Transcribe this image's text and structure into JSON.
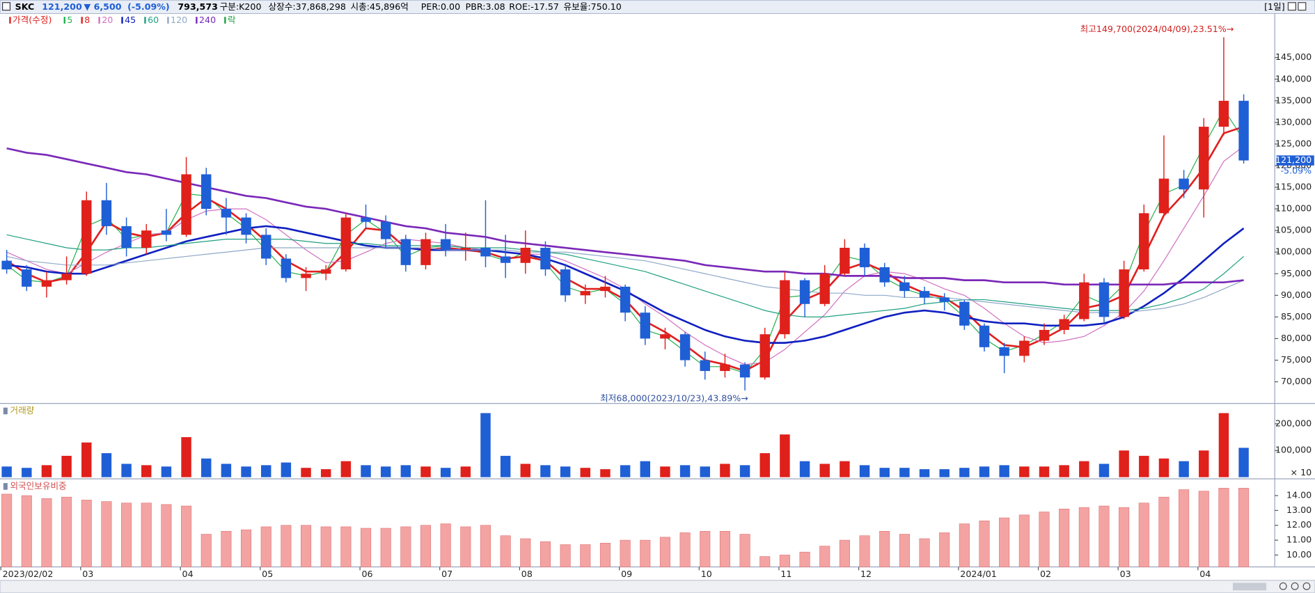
{
  "header": {
    "symbol": "SKC",
    "price": "121,200",
    "change": "▼ 6,500",
    "change_pct": "(-5.09%)",
    "volume": "793,573",
    "items": [
      "구분:K200",
      "상장수:37,868,298",
      "시총:45,896억",
      "PER:0.00",
      "PBR:3.08",
      "ROE:-17.57",
      "유보율:750.10"
    ],
    "period": "[1일]"
  },
  "chart_data": [
    {
      "type": "candlestick",
      "price_legend": "가격(수정)",
      "lock_legend": "락",
      "up_color": "#e0201b",
      "down_color": "#1f5fd6",
      "categories": [
        "2023/02/02",
        null,
        null,
        null,
        "03",
        null,
        null,
        null,
        null,
        "04",
        null,
        null,
        null,
        "05",
        null,
        null,
        null,
        null,
        "06",
        null,
        null,
        null,
        "07",
        null,
        null,
        null,
        "08",
        null,
        null,
        null,
        null,
        "09",
        null,
        null,
        null,
        "10",
        null,
        null,
        null,
        "11",
        null,
        null,
        null,
        "12",
        null,
        null,
        null,
        null,
        "2024/01",
        null,
        null,
        null,
        "02",
        null,
        null,
        null,
        "03",
        null,
        null,
        null,
        "04",
        null,
        null
      ],
      "open": [
        98000,
        96000,
        92000,
        93500,
        95000,
        112000,
        106000,
        101000,
        105000,
        104000,
        118000,
        110000,
        108000,
        104000,
        98500,
        94000,
        95000,
        96000,
        108000,
        107000,
        103000,
        97000,
        103000,
        100500,
        101000,
        99000,
        97500,
        101000,
        96000,
        90000,
        91000,
        92000,
        86000,
        80000,
        81000,
        75000,
        72500,
        74000,
        71000,
        81000,
        93500,
        88000,
        95000,
        101000,
        96500,
        93000,
        91000,
        89500,
        88500,
        83000,
        78000,
        76000,
        79500,
        82000,
        84500,
        93000,
        85000,
        96000,
        109000,
        117000,
        114500,
        129000,
        135000
      ],
      "high": [
        100500,
        97000,
        95500,
        99000,
        114000,
        116000,
        108000,
        106500,
        110000,
        122000,
        119500,
        112500,
        109000,
        105500,
        99500,
        96500,
        97000,
        109000,
        111000,
        108500,
        104000,
        104500,
        106500,
        104500,
        112000,
        104000,
        105000,
        102500,
        97000,
        92500,
        94500,
        92500,
        87500,
        82500,
        81500,
        77000,
        76500,
        74500,
        82500,
        95500,
        94000,
        97000,
        103000,
        102000,
        97500,
        94500,
        92000,
        90500,
        89000,
        83500,
        79000,
        80500,
        83500,
        85500,
        95000,
        94000,
        98000,
        111000,
        127000,
        119000,
        131000,
        149700,
        136500
      ],
      "low": [
        95000,
        91000,
        89500,
        92500,
        94500,
        104000,
        99000,
        99500,
        102500,
        103500,
        108500,
        104000,
        102000,
        97000,
        93000,
        91000,
        93500,
        95500,
        105500,
        101000,
        95500,
        96000,
        99000,
        98000,
        96500,
        94000,
        95000,
        94500,
        88500,
        88000,
        89500,
        84000,
        78500,
        77500,
        73500,
        70500,
        71000,
        68000,
        70500,
        80000,
        85000,
        87500,
        94500,
        94500,
        92000,
        89500,
        88000,
        86500,
        82000,
        77000,
        72000,
        74500,
        78500,
        81000,
        84000,
        83500,
        84500,
        95500,
        108500,
        112500,
        108000,
        127000,
        120500
      ],
      "close": [
        96000,
        92000,
        93500,
        95000,
        112000,
        106000,
        101000,
        105000,
        104000,
        118000,
        110000,
        108000,
        104000,
        98500,
        94000,
        95000,
        96000,
        108000,
        107000,
        103000,
        97000,
        103000,
        100500,
        101000,
        99000,
        97500,
        101000,
        96000,
        90000,
        91000,
        92000,
        86000,
        80000,
        81000,
        75000,
        72500,
        74000,
        71000,
        81000,
        93500,
        88000,
        95000,
        101000,
        96500,
        93000,
        91000,
        89500,
        88500,
        83000,
        78000,
        76000,
        79500,
        82000,
        84500,
        93000,
        85000,
        96000,
        109000,
        117000,
        114500,
        129000,
        135000,
        121200
      ],
      "series": [
        {
          "name": "5",
          "color": "#22b14c",
          "line_width": 1,
          "values": [
            97000,
            93500,
            93000,
            94500,
            106000,
            108000,
            103000,
            104000,
            104500,
            113500,
            113000,
            109000,
            105500,
            100500,
            95500,
            94500,
            95500,
            104000,
            107500,
            104500,
            99000,
            101000,
            101500,
            101000,
            99500,
            98000,
            100000,
            97500,
            92000,
            90500,
            91500,
            88000,
            82000,
            80500,
            77000,
            73500,
            73500,
            72000,
            77500,
            89500,
            90000,
            92500,
            99000,
            98000,
            94000,
            91500,
            90000,
            89000,
            85000,
            80000,
            77000,
            78500,
            81000,
            84000,
            90000,
            88000,
            92500,
            104500,
            113500,
            115500,
            124500,
            133000,
            126000
          ]
        },
        {
          "name": "8",
          "color": "#e02020",
          "line_width": 2.2,
          "values": [
            98000,
            95000,
            93000,
            94000,
            100000,
            107000,
            104500,
            103500,
            104500,
            109000,
            112500,
            110000,
            106500,
            102500,
            98000,
            95500,
            95500,
            100000,
            105500,
            105000,
            101000,
            100500,
            101000,
            100500,
            100000,
            98500,
            99000,
            98000,
            94000,
            91500,
            91500,
            89000,
            84000,
            81500,
            78500,
            75000,
            74000,
            72500,
            75000,
            84000,
            89000,
            91000,
            96000,
            97500,
            95500,
            92500,
            90500,
            89500,
            86500,
            82000,
            78500,
            78000,
            80000,
            82500,
            87000,
            88000,
            90000,
            99000,
            108500,
            113500,
            119500,
            127500,
            129000
          ]
        },
        {
          "name": "20",
          "color": "#d070c0",
          "line_width": 1,
          "values": [
            100000,
            98000,
            96000,
            95000,
            97500,
            100000,
            102000,
            104000,
            104500,
            107500,
            109500,
            110000,
            110000,
            107500,
            104000,
            100500,
            97500,
            98000,
            100000,
            102000,
            103000,
            102500,
            102000,
            101000,
            100500,
            100000,
            99500,
            99500,
            98000,
            96000,
            94000,
            91500,
            88000,
            85000,
            81500,
            78500,
            76000,
            74000,
            74500,
            77500,
            81500,
            85500,
            91000,
            94500,
            95500,
            95000,
            93500,
            91500,
            90000,
            87000,
            83500,
            80500,
            79000,
            79500,
            80500,
            83000,
            86000,
            91000,
            98000,
            105500,
            113000,
            121000,
            124500
          ]
        },
        {
          "name": "45",
          "color": "#1020c0",
          "line_width": 2.2,
          "values": [
            97000,
            96500,
            95500,
            95000,
            95000,
            96500,
            98000,
            99500,
            101000,
            102500,
            103500,
            104500,
            105500,
            106000,
            105500,
            104500,
            103500,
            102500,
            101500,
            101000,
            101000,
            100500,
            100500,
            100500,
            100500,
            100000,
            99500,
            98500,
            97000,
            95000,
            93000,
            91000,
            88500,
            86000,
            84000,
            82000,
            80500,
            79500,
            79000,
            79000,
            79500,
            80500,
            82000,
            83500,
            85000,
            86000,
            86500,
            86000,
            85000,
            84000,
            83500,
            83500,
            83000,
            83000,
            83000,
            83500,
            85000,
            87500,
            90500,
            94000,
            98000,
            102000,
            105500
          ]
        },
        {
          "name": "60",
          "color": "#20a080",
          "line_width": 1,
          "values": [
            104000,
            103000,
            102000,
            101000,
            100500,
            100500,
            101000,
            101000,
            101500,
            102000,
            102500,
            103000,
            103000,
            103000,
            103000,
            102500,
            102000,
            102000,
            102000,
            101500,
            101500,
            101500,
            101500,
            101000,
            101000,
            101000,
            100500,
            100000,
            99500,
            98500,
            97500,
            96500,
            95500,
            94000,
            92500,
            91000,
            89500,
            88000,
            86500,
            85500,
            85000,
            85000,
            85500,
            86000,
            86500,
            87000,
            88000,
            88500,
            89000,
            89000,
            88500,
            88000,
            87500,
            87000,
            86500,
            86500,
            86500,
            87000,
            88000,
            89500,
            91500,
            95000,
            99000
          ]
        },
        {
          "name": "120",
          "color": "#8fa8c8",
          "line_width": 1,
          "values": [
            99000,
            98000,
            97500,
            97000,
            97000,
            97000,
            97500,
            98000,
            98500,
            99000,
            99500,
            100000,
            100500,
            101000,
            101000,
            101000,
            101000,
            101000,
            101000,
            101000,
            101000,
            101000,
            100500,
            100500,
            100500,
            100500,
            100000,
            100000,
            100000,
            99500,
            99000,
            98500,
            98000,
            97000,
            96000,
            95000,
            94000,
            93000,
            92000,
            91500,
            91000,
            90500,
            90500,
            90000,
            90000,
            89500,
            89500,
            89500,
            89000,
            88500,
            88000,
            87500,
            87000,
            86500,
            86000,
            86000,
            86000,
            86500,
            87000,
            88000,
            89500,
            91500,
            93500
          ]
        },
        {
          "name": "240",
          "color": "#7a28b8",
          "line_width": 2.2,
          "values": [
            124000,
            123000,
            122500,
            121500,
            120500,
            119500,
            118500,
            118000,
            117000,
            116000,
            115000,
            114000,
            113000,
            112500,
            111500,
            110500,
            110000,
            109000,
            108000,
            107000,
            106000,
            105500,
            104500,
            104000,
            103500,
            102500,
            102000,
            101500,
            101000,
            100500,
            100000,
            99500,
            99000,
            98500,
            98000,
            97000,
            96500,
            96000,
            95500,
            95500,
            95000,
            95000,
            94500,
            94500,
            94500,
            94000,
            94000,
            94000,
            93500,
            93500,
            93000,
            93000,
            93000,
            92500,
            92500,
            92500,
            92500,
            92500,
            92500,
            93000,
            93000,
            93000,
            93500
          ]
        }
      ],
      "ylim": [
        65000,
        155000
      ],
      "yticks": [
        {
          "value": 70000,
          "label": "70,000"
        },
        {
          "value": 75000,
          "label": "75,000"
        },
        {
          "value": 80000,
          "label": "80,000"
        },
        {
          "value": 85000,
          "label": "85,000"
        },
        {
          "value": 90000,
          "label": "90,000"
        },
        {
          "value": 95000,
          "label": "95,000"
        },
        {
          "value": 100000,
          "label": "100,000"
        },
        {
          "value": 105000,
          "label": "105,000"
        },
        {
          "value": 110000,
          "label": "110,000"
        },
        {
          "value": 115000,
          "label": "115,000"
        },
        {
          "value": 120000,
          "label": "120,000"
        },
        {
          "value": 125000,
          "label": "125,000"
        },
        {
          "value": 130000,
          "label": "130,000"
        },
        {
          "value": 135000,
          "label": "135,000"
        },
        {
          "value": 140000,
          "label": "140,000"
        },
        {
          "value": 145000,
          "label": "145,000"
        }
      ],
      "high_note": "최고149,700(2024/04/09),23.51%→",
      "low_note": "최저68,000(2023/10/23),43.89%→",
      "last_label": "121,200",
      "last_change": "-5.09%"
    },
    {
      "type": "bar",
      "title": "거래량",
      "unit_label": "× 10",
      "values": [
        40000,
        35000,
        45000,
        80000,
        130000,
        90000,
        50000,
        45000,
        40000,
        150000,
        70000,
        50000,
        40000,
        45000,
        55000,
        35000,
        30000,
        60000,
        45000,
        40000,
        45000,
        40000,
        35000,
        40000,
        240000,
        80000,
        50000,
        45000,
        40000,
        35000,
        30000,
        45000,
        60000,
        40000,
        45000,
        40000,
        50000,
        45000,
        90000,
        160000,
        60000,
        50000,
        60000,
        45000,
        35000,
        35000,
        30000,
        30000,
        35000,
        40000,
        45000,
        40000,
        40000,
        45000,
        60000,
        50000,
        100000,
        80000,
        70000,
        60000,
        100000,
        240000,
        110000
      ],
      "ylim": [
        0,
        270000
      ],
      "yticks": [
        {
          "value": 100000,
          "label": "100,000"
        },
        {
          "value": 200000,
          "label": "200,000"
        }
      ]
    },
    {
      "type": "bar",
      "title": "외국인보유비중",
      "color": "#f4a3a3",
      "values": [
        14.1,
        14.0,
        13.8,
        13.9,
        13.7,
        13.6,
        13.5,
        13.5,
        13.4,
        13.3,
        11.4,
        11.6,
        11.7,
        11.9,
        12.0,
        12.0,
        11.9,
        11.9,
        11.8,
        11.8,
        11.9,
        12.0,
        12.1,
        11.9,
        12.0,
        11.3,
        11.1,
        10.9,
        10.7,
        10.7,
        10.8,
        11.0,
        11.0,
        11.2,
        11.5,
        11.6,
        11.6,
        11.4,
        9.9,
        10.0,
        10.2,
        10.6,
        11.0,
        11.3,
        11.6,
        11.4,
        11.1,
        11.5,
        12.1,
        12.3,
        12.5,
        12.7,
        12.9,
        13.1,
        13.2,
        13.3,
        13.2,
        13.5,
        13.9,
        14.4,
        14.3,
        14.5,
        14.5
      ],
      "ylim": [
        9.2,
        14.9
      ],
      "yticks": [
        {
          "value": 10,
          "label": "10.00"
        },
        {
          "value": 11,
          "label": "11.00"
        },
        {
          "value": 12,
          "label": "12.00"
        },
        {
          "value": 13,
          "label": "13.00"
        },
        {
          "value": 14,
          "label": "14.00"
        }
      ]
    }
  ]
}
